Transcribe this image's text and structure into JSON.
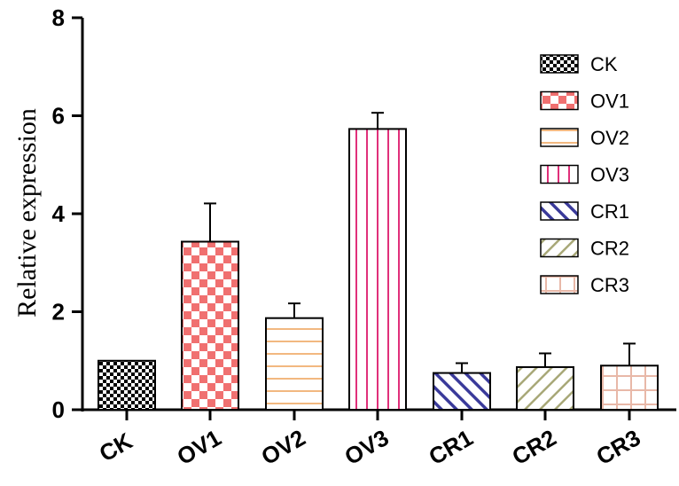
{
  "chart_data": {
    "type": "bar",
    "title": "",
    "xlabel": "",
    "ylabel": "Relative expression",
    "ylim": [
      0,
      8
    ],
    "yticks": [
      0,
      2,
      4,
      6,
      8
    ],
    "grid": false,
    "legend_position": "top-right",
    "categories": [
      "CK",
      "OV1",
      "OV2",
      "OV3",
      "CR1",
      "CR2",
      "CR3"
    ],
    "values": [
      1.0,
      3.43,
      1.87,
      5.73,
      0.75,
      0.87,
      0.9
    ],
    "errors": [
      0.0,
      0.78,
      0.3,
      0.33,
      0.2,
      0.28,
      0.45
    ],
    "legend": [
      "CK",
      "OV1",
      "OV2",
      "OV3",
      "CR1",
      "CR2",
      "CR3"
    ],
    "colors": {
      "CK": "#000000",
      "OV1": "#f07070",
      "OV2": "#f2b880",
      "OV3": "#e0307a",
      "CR1": "#3a3a9a",
      "CR2": "#a8a878",
      "CR3": "#e8b8a8"
    },
    "patterns": [
      "checker-fine",
      "checker-large",
      "horizontal",
      "vertical",
      "diagonal-up",
      "diagonal-down",
      "grid"
    ]
  }
}
